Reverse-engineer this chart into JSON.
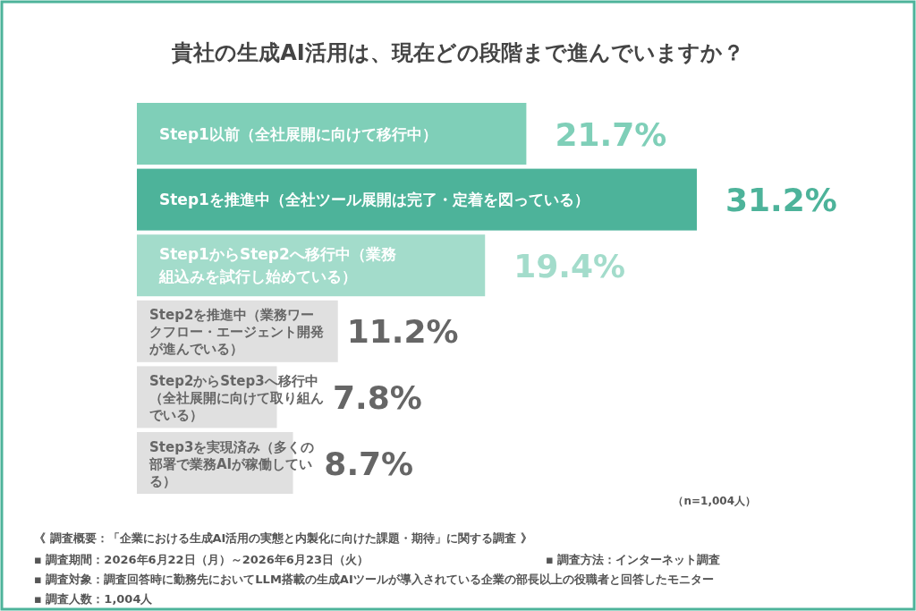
{
  "chart_data": {
    "type": "bar",
    "orientation": "horizontal",
    "title": "貴社の生成AI活用は、現在どの段階まで進んでいますか？",
    "categories": [
      "Step1以前（全社展開に向けて移行中）",
      "Step1を推進中（全社ツール展開は完了・定着を図っている）",
      "Step1からStep2へ移行中（業務組込みを試行し始めている）",
      "Step2を推進中（業務ワークフロー・エージェント開発が進んでいる）",
      "Step2からStep3へ移行中（全社展開に向けて取り組んでいる）",
      "Step3を実現済み（多くの部署で業務AIが稼働している）"
    ],
    "values": [
      21.7,
      31.2,
      19.4,
      11.2,
      7.8,
      8.7
    ],
    "colors": [
      "#7fcfb8",
      "#4db39a",
      "#a3dccb",
      "#e0e0e0",
      "#e0e0e0",
      "#e0e0e0"
    ],
    "value_labels": [
      "21.7%",
      "31.2%",
      "19.4%",
      "11.2%",
      "7.8%",
      "8.7%"
    ],
    "annotations": [
      "（n=1,004人）",
      "《 調査概要：「企業における生成AI活用の実態と内製化に向けた課題・期待」に関する調査 》",
      "▪ 調査期間：2026年6月22日（月）～2026年6月23日（火）",
      "▪ 調査方法：インターネット調査",
      "▪ 調査対象：調査回答時に勤務先においてLLM搭載の生成AIツールが導入されている企業の部長以上の役職者と回答したモニター",
      "▪ 調査人数：1,004人"
    ]
  }
}
